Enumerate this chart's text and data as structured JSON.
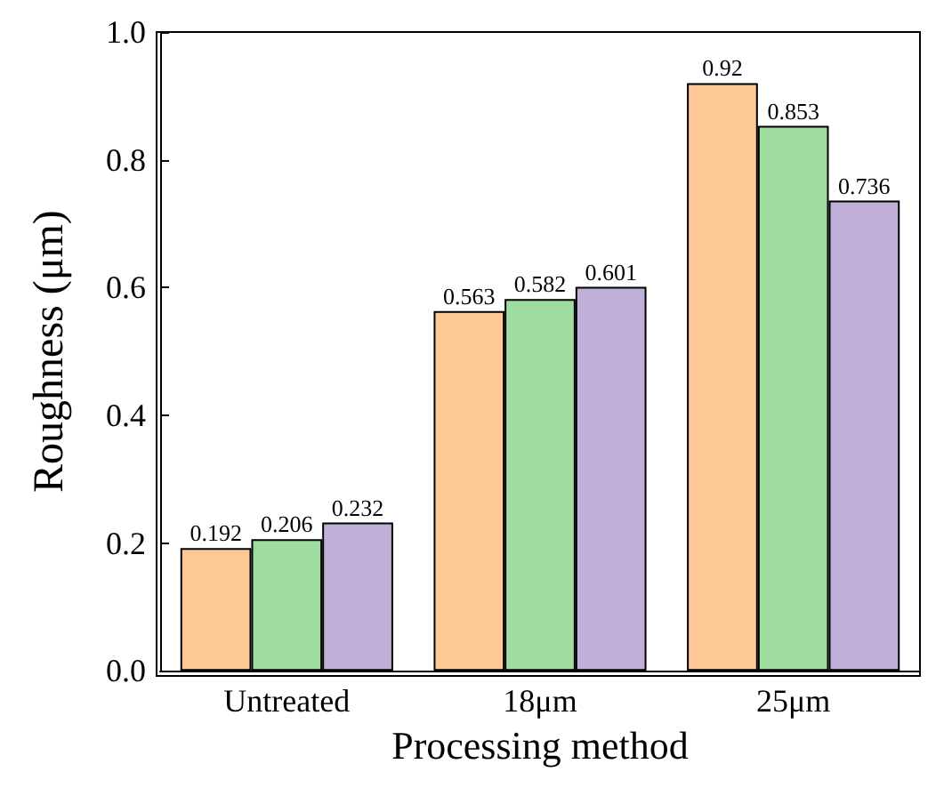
{
  "chart_data": {
    "type": "bar",
    "xlabel": "Processing method",
    "ylabel": "Roughness (μm)",
    "categories": [
      "Untreated",
      "18μm",
      "25μm"
    ],
    "series": [
      {
        "color": "#fdc895",
        "values": [
          0.192,
          0.563,
          0.92
        ]
      },
      {
        "color": "#a0dca0",
        "values": [
          0.206,
          0.582,
          0.853
        ]
      },
      {
        "color": "#c0b0d8",
        "values": [
          0.232,
          0.601,
          0.736
        ]
      }
    ],
    "ylim": [
      0,
      1.0
    ],
    "yticks": [
      {
        "value": 0,
        "label": "0.0"
      },
      {
        "value": 0.2,
        "label": "0.2"
      },
      {
        "value": 0.4,
        "label": "0.4"
      },
      {
        "value": 0.6,
        "label": "0.6"
      },
      {
        "value": 0.8,
        "label": "0.8"
      },
      {
        "value": 1.0,
        "label": "1.0"
      }
    ],
    "data_labels": true
  }
}
